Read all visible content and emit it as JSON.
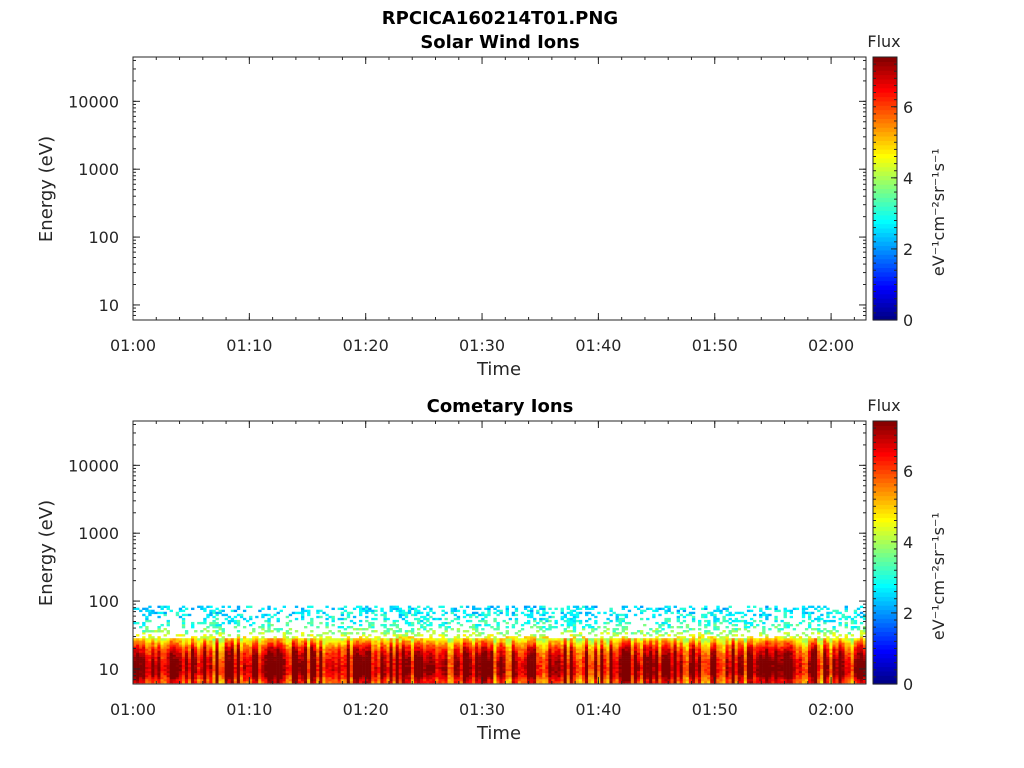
{
  "figure_title": "RPCICA160214T01.PNG",
  "chart_data": [
    {
      "type": "heatmap",
      "title": "Solar Wind Ions",
      "xlabel": "Time",
      "ylabel": "Energy (eV)",
      "x_ticks": [
        "01:00",
        "01:10",
        "01:20",
        "01:30",
        "01:40",
        "01:50",
        "02:00"
      ],
      "x_range": [
        "01:00",
        "02:03"
      ],
      "y_scale": "log",
      "y_ticks": [
        "10",
        "100",
        "1000",
        "10000"
      ],
      "y_range": [
        6,
        45000
      ],
      "colorbar": {
        "title": "Flux",
        "label": "eV⁻¹cm⁻²sr⁻¹s⁻¹",
        "ticks": [
          "0",
          "2",
          "4",
          "6"
        ],
        "range": [
          0,
          7.4
        ],
        "colormap": "jet"
      },
      "data_note": "empty"
    },
    {
      "type": "heatmap",
      "title": "Cometary Ions",
      "xlabel": "Time",
      "ylabel": "Energy (eV)",
      "x_ticks": [
        "01:00",
        "01:10",
        "01:20",
        "01:30",
        "01:40",
        "01:50",
        "02:00"
      ],
      "x_range": [
        "01:00",
        "02:03"
      ],
      "y_scale": "log",
      "y_ticks": [
        "10",
        "100",
        "1000",
        "10000"
      ],
      "y_range": [
        6,
        45000
      ],
      "colorbar": {
        "title": "Flux",
        "label": "eV⁻¹cm⁻²sr⁻¹s⁻¹",
        "ticks": [
          "0",
          "2",
          "4",
          "6"
        ],
        "range": [
          0,
          7.4
        ],
        "colormap": "jet"
      },
      "energy_profile": [
        {
          "energy": 6.5,
          "flux": 6.2
        },
        {
          "energy": 8,
          "flux": 7.0
        },
        {
          "energy": 10,
          "flux": 7.2
        },
        {
          "energy": 13,
          "flux": 7.0
        },
        {
          "energy": 16,
          "flux": 6.6
        },
        {
          "energy": 20,
          "flux": 6.0
        },
        {
          "energy": 25,
          "flux": 5.0
        },
        {
          "energy": 30,
          "flux": 4.0
        },
        {
          "energy": 40,
          "flux": 3.0
        },
        {
          "energy": 60,
          "flux": 2.5
        },
        {
          "energy": 85,
          "flux": 2.3
        }
      ]
    }
  ]
}
